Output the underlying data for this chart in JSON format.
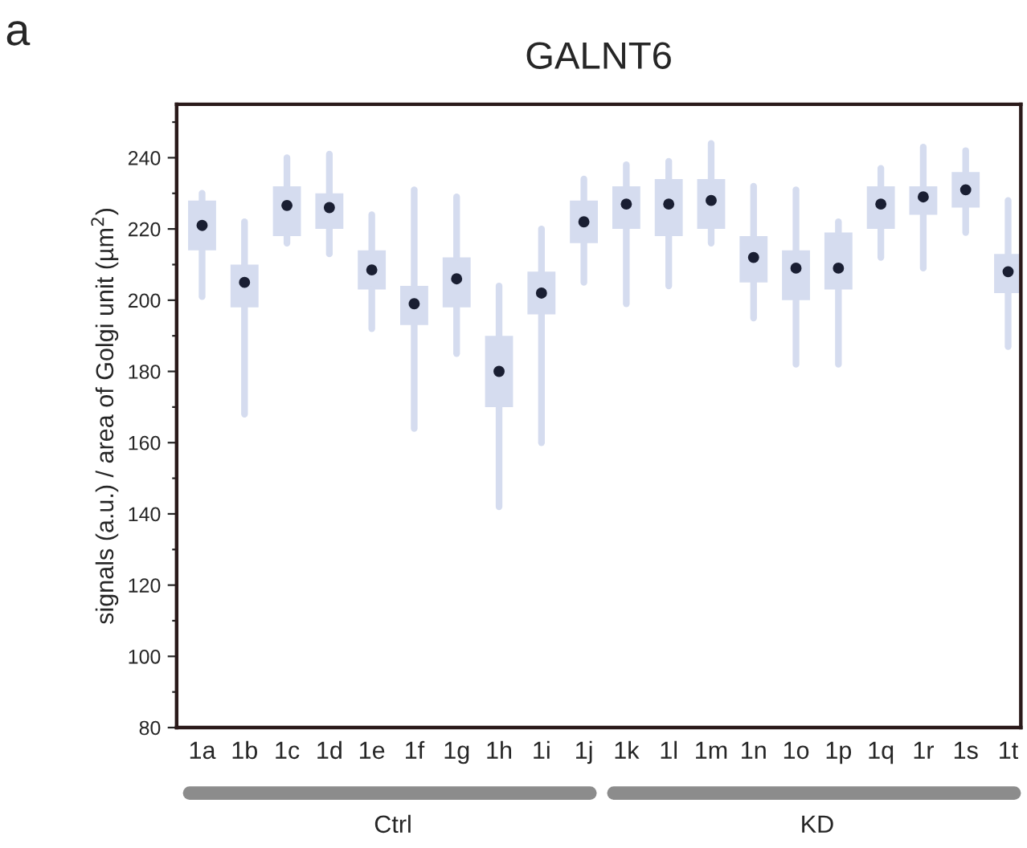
{
  "chart_data": {
    "type": "box",
    "title": "GALNT6",
    "ylabel": "signals (a.u.) / area of Golgi unit (µm$^{2}$)",
    "categories": [
      "1a",
      "1b",
      "1c",
      "1d",
      "1e",
      "1f",
      "1g",
      "1h",
      "1i",
      "1j",
      "1k",
      "1l",
      "1m",
      "1n",
      "1o",
      "1p",
      "1q",
      "1r",
      "1s",
      "1t"
    ],
    "color": "#d5dcef",
    "boxes": [
      {
        "low": 201,
        "q1": 214,
        "median": 221,
        "q3": 228,
        "high": 230
      },
      {
        "low": 168,
        "q1": 198,
        "median": 205,
        "q3": 210,
        "high": 222
      },
      {
        "low": 216,
        "q1": 218,
        "median": 226.6,
        "q3": 232,
        "high": 240
      },
      {
        "low": 213,
        "q1": 220,
        "median": 226,
        "q3": 230,
        "high": 241
      },
      {
        "low": 192,
        "q1": 203,
        "median": 208.5,
        "q3": 214,
        "high": 224
      },
      {
        "low": 164,
        "q1": 193,
        "median": 199,
        "q3": 204,
        "high": 231
      },
      {
        "low": 185,
        "q1": 198,
        "median": 206,
        "q3": 212,
        "high": 229
      },
      {
        "low": 142,
        "q1": 170,
        "median": 180,
        "q3": 190,
        "high": 204
      },
      {
        "low": 160,
        "q1": 196,
        "median": 202,
        "q3": 208,
        "high": 220
      },
      {
        "low": 205,
        "q1": 216,
        "median": 222,
        "q3": 228,
        "high": 234
      },
      {
        "low": 199,
        "q1": 220,
        "median": 227,
        "q3": 232,
        "high": 238
      },
      {
        "low": 204,
        "q1": 218,
        "median": 227,
        "q3": 234,
        "high": 239
      },
      {
        "low": 216,
        "q1": 220,
        "median": 228,
        "q3": 234,
        "high": 244
      },
      {
        "low": 195,
        "q1": 205,
        "median": 212,
        "q3": 218,
        "high": 232
      },
      {
        "low": 182,
        "q1": 200,
        "median": 209,
        "q3": 214,
        "high": 231
      },
      {
        "low": 182,
        "q1": 203,
        "median": 209,
        "q3": 219,
        "high": 222
      },
      {
        "low": 212,
        "q1": 220,
        "median": 227,
        "q3": 232,
        "high": 237
      },
      {
        "low": 209,
        "q1": 224,
        "median": 229,
        "q3": 232,
        "high": 243
      },
      {
        "low": 219,
        "q1": 226,
        "median": 231,
        "q3": 236,
        "high": 242
      },
      {
        "low": 187,
        "q1": 202,
        "median": 208,
        "q3": 213,
        "high": 228
      }
    ],
    "ylim": [
      80,
      255
    ],
    "yticks": [
      80,
      {
        "value": 90,
        "label": null
      },
      100,
      {
        "value": 110,
        "label": null
      },
      120,
      {
        "value": 130,
        "label": null
      },
      140,
      {
        "value": 150,
        "label": null
      },
      160,
      {
        "value": 170,
        "label": null
      },
      180,
      {
        "value": 190,
        "label": null
      },
      200,
      {
        "value": 210,
        "label": null
      },
      220,
      {
        "value": 230,
        "label": null
      },
      240,
      {
        "value": 250,
        "label": null
      }
    ],
    "annotations": [
      "a",
      "Ctrl",
      "KD"
    ],
    "grid": false
  }
}
